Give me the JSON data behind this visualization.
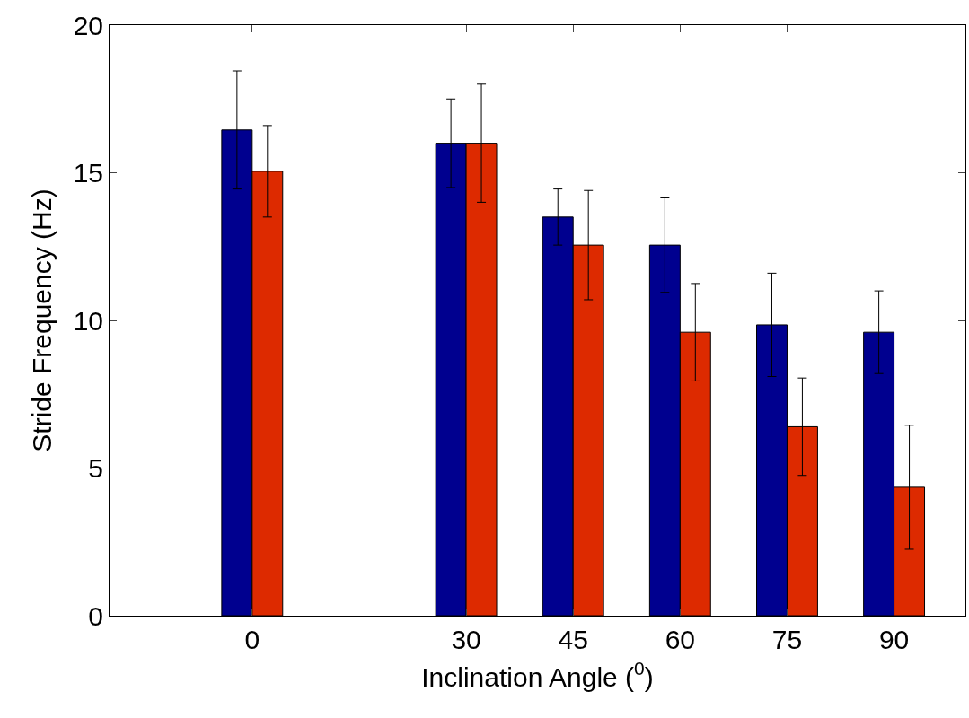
{
  "chart_data": {
    "type": "bar",
    "xlabel": "Inclination Angle ($^{0}$)",
    "ylabel": "Stride Frequency (Hz)",
    "x": [
      0,
      30,
      45,
      60,
      75,
      90
    ],
    "series": [
      {
        "color": "#00008f",
        "values": [
          16.45,
          16.0,
          13.5,
          12.55,
          9.85,
          9.6
        ],
        "errors": [
          2.0,
          1.5,
          0.95,
          1.6,
          1.75,
          1.4
        ]
      },
      {
        "color": "#dd2a00",
        "values": [
          15.05,
          16.0,
          12.55,
          9.6,
          6.4,
          4.35
        ],
        "errors": [
          1.55,
          2.0,
          1.85,
          1.65,
          1.65,
          2.1
        ]
      }
    ],
    "xlim": [
      -20,
      100
    ],
    "xticks": [
      0,
      30,
      45,
      60,
      75,
      90
    ],
    "ylim": [
      0,
      20
    ],
    "yticks": [
      0,
      5,
      10,
      15,
      20
    ]
  }
}
